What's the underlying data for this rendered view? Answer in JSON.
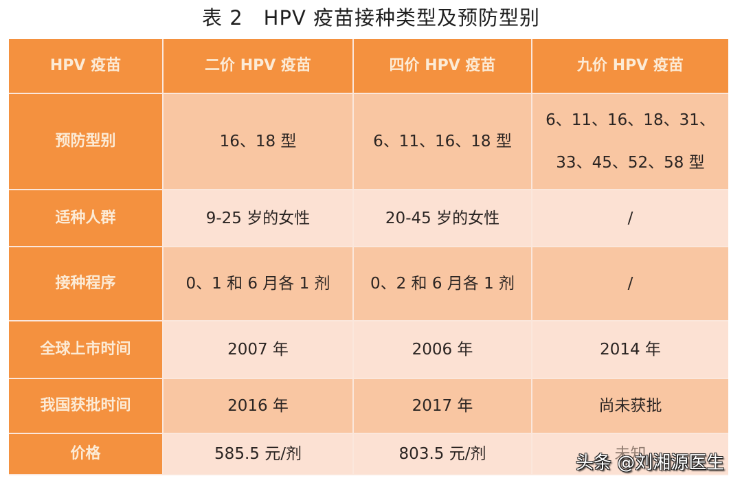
{
  "title": "表 2　HPV 疫苗接种类型及预防型别",
  "table": {
    "headers": [
      "HPV 疫苗",
      "二价 HPV 疫苗",
      "四价 HPV 疫苗",
      "九价 HPV 疫苗"
    ],
    "rows": [
      {
        "label": "预防型别",
        "bivalent": "16、18 型",
        "quadrivalent": "6、11、16、18 型",
        "nonavalent_line1": "6、11、16、18、31、",
        "nonavalent_line2": "33、45、52、58 型"
      },
      {
        "label": "适种人群",
        "bivalent": "9-25 岁的女性",
        "quadrivalent": "20-45 岁的女性",
        "nonavalent": "/"
      },
      {
        "label": "接种程序",
        "bivalent": "0、1 和 6 月各 1 剂",
        "quadrivalent": "0、2 和 6 月各 1 剂",
        "nonavalent": "/"
      },
      {
        "label": "全球上市时间",
        "bivalent": "2007 年",
        "quadrivalent": "2006 年",
        "nonavalent": "2014 年"
      },
      {
        "label": "我国获批时间",
        "bivalent": "2016 年",
        "quadrivalent": "2017 年",
        "nonavalent": "尚未获批"
      },
      {
        "label": "价格",
        "bivalent": "585.5 元/剂",
        "quadrivalent": "803.5 元/剂",
        "nonavalent": "未知"
      }
    ]
  },
  "watermark": "头条 @刘湘源医生",
  "colors": {
    "header_bg": "#f4913f",
    "header_text": "#fcebd6",
    "row_dark": "#f9c6a2",
    "row_light": "#fce1d3"
  }
}
